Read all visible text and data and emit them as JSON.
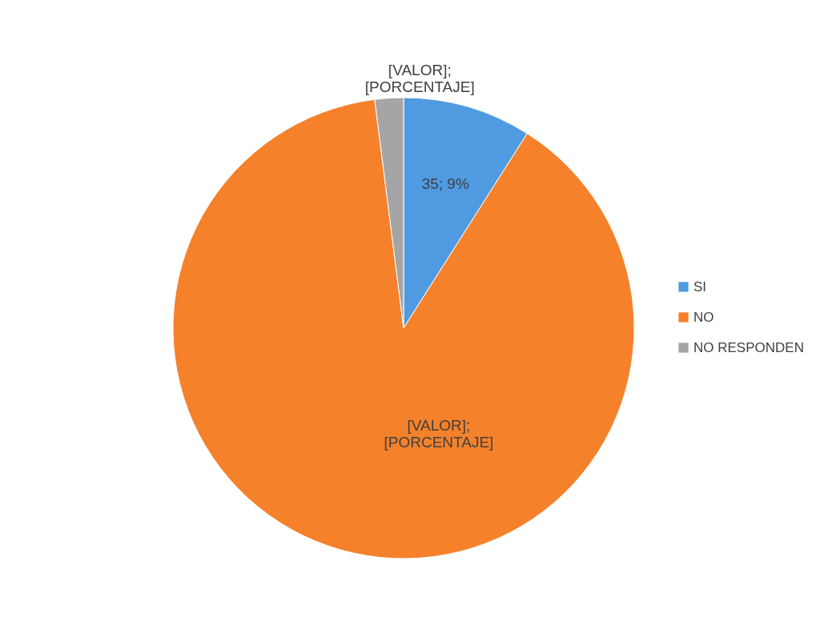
{
  "chart_data": {
    "type": "pie",
    "categories": [
      "SI",
      "NO",
      "NO RESPONDEN"
    ],
    "values": [
      9,
      89,
      2
    ],
    "colors": [
      "#4f9ae0",
      "#f5812b",
      "#a5a5a5"
    ],
    "value_labels": [
      "35; 9%",
      "[VALOR]; [PORCENTAJE]",
      "[VALOR]; [PORCENTAJE]"
    ],
    "legend": "right"
  }
}
